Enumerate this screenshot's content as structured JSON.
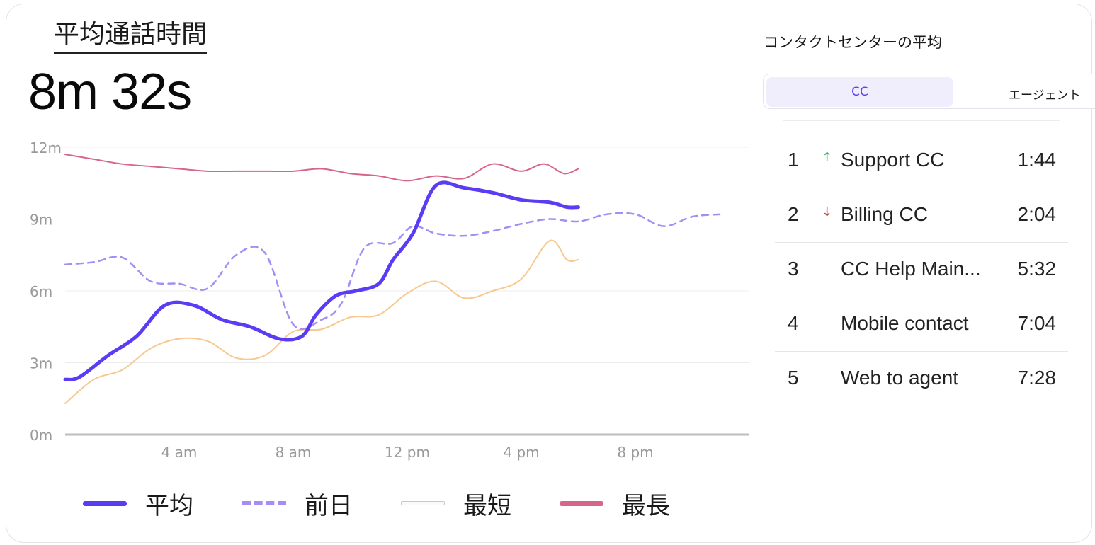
{
  "header": {
    "title": "平均通話時間",
    "value": "8m 32s"
  },
  "chart_data": {
    "type": "line",
    "x_ticks": [
      "4 am",
      "8 am",
      "12 pm",
      "4 pm",
      "8 pm"
    ],
    "x_range_hours": [
      0,
      24
    ],
    "y_ticks": [
      "0m",
      "3m",
      "6m",
      "9m",
      "12m"
    ],
    "ylim_minutes": [
      0,
      12
    ],
    "grid": true,
    "legend_position": "bottom",
    "series": [
      {
        "name": "平均",
        "style": "solid-thick",
        "color": "#5b3cf5",
        "x_hours": [
          0,
          0.5,
          1.5,
          2.5,
          3.5,
          4.5,
          5.5,
          6.5,
          7.5,
          8.3,
          8.8,
          9.5,
          10.2,
          11.0,
          11.5,
          12.2,
          13.0,
          14.0,
          15.0,
          16.0,
          17.0,
          17.6,
          18.0
        ],
        "values_minutes": [
          2.3,
          2.4,
          3.3,
          4.1,
          5.4,
          5.4,
          4.8,
          4.5,
          4.0,
          4.1,
          5.0,
          5.8,
          6.0,
          6.3,
          7.3,
          8.4,
          10.4,
          10.3,
          10.1,
          9.8,
          9.7,
          9.5,
          9.5
        ]
      },
      {
        "name": "前日",
        "style": "dashed",
        "color": "#a48ef5",
        "x_hours": [
          0,
          1,
          2,
          3,
          4,
          5,
          6,
          7,
          8,
          9.0,
          9.7,
          10.5,
          11.5,
          12.2,
          13.0,
          14.0,
          15.0,
          16.0,
          17.0,
          18.0,
          19.0,
          20.0,
          21.0,
          22.0,
          23.0
        ],
        "values_minutes": [
          7.1,
          7.2,
          7.4,
          6.4,
          6.3,
          6.1,
          7.5,
          7.6,
          4.6,
          4.8,
          5.5,
          7.8,
          8.0,
          8.7,
          8.4,
          8.3,
          8.5,
          8.8,
          9.0,
          8.9,
          9.2,
          9.2,
          8.7,
          9.1,
          9.2
        ]
      },
      {
        "name": "最短",
        "style": "thin",
        "color": "#f7c88f",
        "x_hours": [
          0,
          1,
          2,
          3,
          4,
          5,
          6,
          7,
          8,
          9.0,
          10.0,
          11.0,
          12.0,
          13.0,
          14.0,
          15.0,
          16.0,
          17.0,
          17.6,
          18.0
        ],
        "values_minutes": [
          1.3,
          2.3,
          2.7,
          3.6,
          4.0,
          3.9,
          3.2,
          3.3,
          4.3,
          4.4,
          4.9,
          5.0,
          5.9,
          6.4,
          5.7,
          6.0,
          6.5,
          8.1,
          7.3,
          7.3
        ]
      },
      {
        "name": "最長",
        "style": "solid-medium",
        "color": "#d6658c",
        "x_hours": [
          0,
          1,
          2,
          3,
          4,
          5,
          6,
          7,
          8,
          9.0,
          10.0,
          11.0,
          12.0,
          13.0,
          14.0,
          15.0,
          16.0,
          16.8,
          17.5,
          18.0
        ],
        "values_minutes": [
          11.7,
          11.5,
          11.3,
          11.2,
          11.1,
          11.0,
          11.0,
          11.0,
          11.0,
          11.1,
          10.9,
          10.8,
          10.6,
          10.8,
          10.7,
          11.3,
          11.0,
          11.3,
          10.9,
          11.1
        ]
      }
    ]
  },
  "legend": [
    {
      "label": "平均"
    },
    {
      "label": "前日"
    },
    {
      "label": "最短"
    },
    {
      "label": "最長"
    }
  ],
  "panel": {
    "title": "コンタクトセンターの平均",
    "tabs": [
      {
        "label": "CC",
        "selected": true
      },
      {
        "label": "エージェント",
        "selected": false
      }
    ],
    "rows": [
      {
        "rank": "1",
        "trend": "up",
        "arrow": "↑",
        "name": "Support CC",
        "time": "1:44"
      },
      {
        "rank": "2",
        "trend": "down",
        "arrow": "↓",
        "name": "Billing CC",
        "time": "2:04"
      },
      {
        "rank": "3",
        "trend": "",
        "arrow": "",
        "name": "CC Help Main...",
        "time": "5:32"
      },
      {
        "rank": "4",
        "trend": "",
        "arrow": "",
        "name": "Mobile contact",
        "time": "7:04"
      },
      {
        "rank": "5",
        "trend": "",
        "arrow": "",
        "name": "Web to agent",
        "time": "7:28"
      }
    ]
  }
}
